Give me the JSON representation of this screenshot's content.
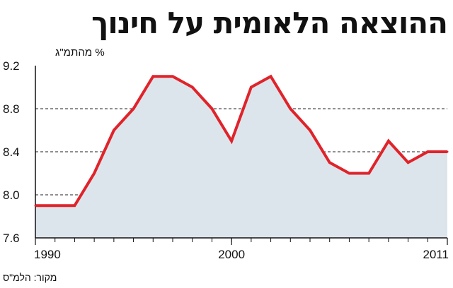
{
  "title": "ההוצאה הלאומית על חינוך",
  "source": "מקור: הלמ\"ס",
  "chart_data": {
    "type": "area",
    "ylabel": "% מהתמ\"ג",
    "ylim": [
      7.6,
      9.2
    ],
    "yticks": [
      "9.2",
      "8.8",
      "8.4",
      "8.0",
      "7.6"
    ],
    "xlim": [
      1990,
      2011
    ],
    "xticks": [
      "1990",
      "2000",
      "2011"
    ],
    "grid": "horizontal dashed",
    "colors": {
      "line": "#e0232a",
      "fill": "#dde5ec"
    },
    "x": [
      1990,
      1991,
      1992,
      1993,
      1994,
      1995,
      1996,
      1997,
      1998,
      1999,
      2000,
      2001,
      2002,
      2003,
      2004,
      2005,
      2006,
      2007,
      2008,
      2009,
      2010,
      2011
    ],
    "y": [
      7.9,
      7.9,
      7.9,
      8.2,
      8.6,
      8.8,
      9.1,
      9.1,
      9.0,
      8.8,
      8.5,
      9.0,
      9.1,
      8.8,
      8.6,
      8.3,
      8.2,
      8.2,
      8.5,
      8.3,
      8.4,
      8.4
    ]
  }
}
